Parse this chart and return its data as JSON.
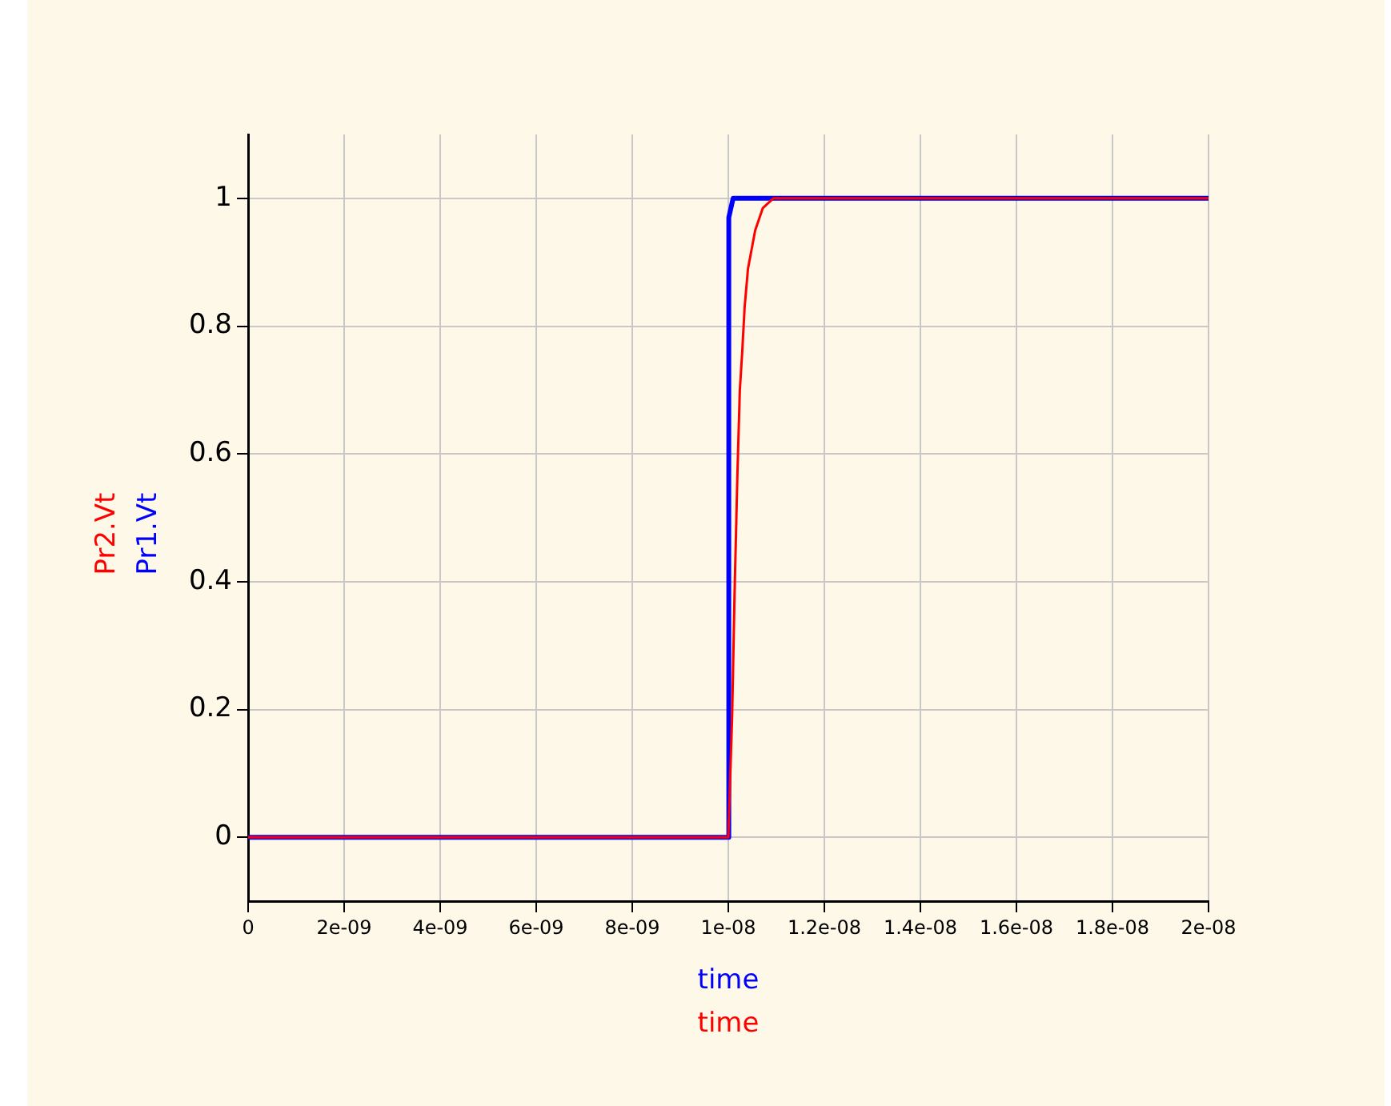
{
  "chart_data": {
    "type": "line",
    "xlabel": "time",
    "xlim": [
      0,
      2e-08
    ],
    "ylim": [
      -0.1,
      1.1
    ],
    "xticks": [
      0,
      {
        "value": 2e-09,
        "label": "2e-09"
      },
      {
        "value": 4e-09,
        "label": "4e-09"
      },
      {
        "value": 6e-09,
        "label": "6e-09"
      },
      {
        "value": 8e-09,
        "label": "8e-09"
      },
      {
        "value": 1e-08,
        "label": "1e-08"
      },
      {
        "value": 1.2e-08,
        "label": "1.2e-08"
      },
      {
        "value": 1.4e-08,
        "label": "1.4e-08"
      },
      {
        "value": 1.6e-08,
        "label": "1.6e-08"
      },
      {
        "value": 1.8e-08,
        "label": "1.8e-08"
      },
      {
        "value": 2e-08,
        "label": "2e-08"
      }
    ],
    "yticks": [
      0,
      0.2,
      0.4,
      0.6,
      0.8,
      1
    ],
    "grid": true,
    "legend": false,
    "marker": "none",
    "line_style": "solid",
    "series": [
      {
        "name": "Pr1.Vt",
        "color": "#0000ff",
        "x": [
          0,
          1e-08,
          1.001e-08,
          1.01e-08,
          2e-08
        ],
        "values": [
          0,
          0,
          0.97,
          1,
          1
        ]
      },
      {
        "name": "Pr2.Vt",
        "color": "#ff0000",
        "x": [
          0,
          1e-08,
          1.008e-08,
          1.013e-08,
          1.019e-08,
          1.024e-08,
          1.029e-08,
          1.034e-08,
          1.041e-08,
          1.056e-08,
          1.072e-08,
          1.094e-08,
          2e-08
        ],
        "values": [
          0,
          0,
          0.19,
          0.38,
          0.57,
          0.7,
          0.76,
          0.83,
          0.89,
          0.95,
          0.985,
          1,
          1
        ]
      }
    ]
  }
}
